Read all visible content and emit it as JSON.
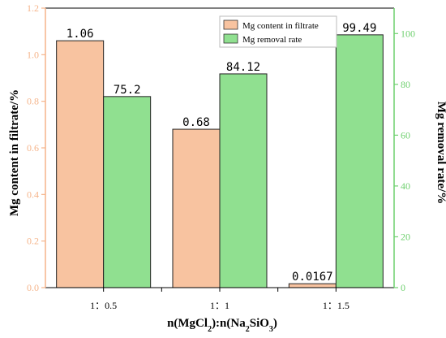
{
  "chart_data": {
    "type": "bar",
    "categories": [
      "1：0.5",
      "1：1",
      "1：1.5"
    ],
    "xlabel": {
      "prefix": "n(MgCl",
      "sub1": "2",
      "mid": "):n(Na",
      "sub2": "2",
      "mid2": "SiO",
      "sub3": "3",
      "suffix": ")"
    },
    "left_axis": {
      "label": "Mg content in filtrate/%",
      "range": [
        0,
        1.2
      ],
      "ticks": [
        "0.0",
        "0.2",
        "0.4",
        "0.6",
        "0.8",
        "1.0",
        "1.2"
      ],
      "tick_values": [
        0,
        0.2,
        0.4,
        0.6,
        0.8,
        1.0,
        1.2
      ],
      "color": "#f5b48a"
    },
    "right_axis": {
      "label": "Mg removal rate/%",
      "range": [
        0,
        110
      ],
      "ticks": [
        "0",
        "20",
        "40",
        "60",
        "80",
        "100"
      ],
      "tick_values": [
        0,
        20,
        40,
        60,
        80,
        100
      ],
      "color": "#6fd06f"
    },
    "series": [
      {
        "name": "Mg content in filtrate",
        "axis": "left",
        "values": [
          1.06,
          0.68,
          0.0167
        ],
        "labels": [
          "1.06",
          "0.68",
          "0.0167"
        ],
        "color": "#f8c3a0"
      },
      {
        "name": "Mg removal rate",
        "axis": "right",
        "values": [
          75.2,
          84.12,
          99.49
        ],
        "labels": [
          "75.2",
          "84.12",
          "99.49"
        ],
        "color": "#90e090"
      }
    ],
    "legend": "top-right"
  }
}
